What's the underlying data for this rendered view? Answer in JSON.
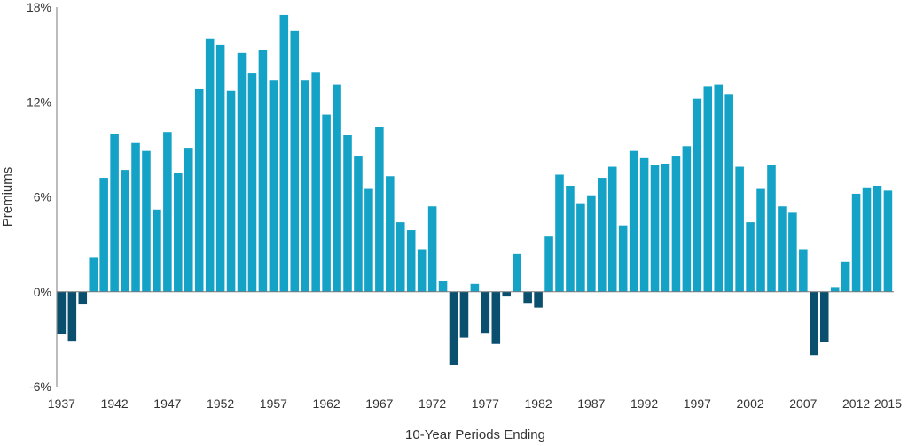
{
  "chart_data": {
    "type": "bar",
    "title": "",
    "xlabel": "10-Year Periods Ending",
    "ylabel": "Premiums",
    "ylim": [
      -6,
      18
    ],
    "y_ticks": [
      "-6%",
      "0%",
      "6%",
      "12%",
      "18%"
    ],
    "y_tick_values": [
      -6,
      0,
      6,
      12,
      18
    ],
    "x_tick_labels": [
      "1937",
      "1942",
      "1947",
      "1952",
      "1957",
      "1962",
      "1967",
      "1972",
      "1977",
      "1982",
      "1987",
      "1992",
      "1997",
      "2002",
      "2007",
      "2012",
      "2015"
    ],
    "grid": false,
    "colors": {
      "positive": "#14a3c7",
      "negative": "#0a4f6e",
      "axis": "#7a7a7a"
    },
    "categories": [
      "1937",
      "1938",
      "1939",
      "1940",
      "1941",
      "1942",
      "1943",
      "1944",
      "1945",
      "1946",
      "1947",
      "1948",
      "1949",
      "1950",
      "1951",
      "1952",
      "1953",
      "1954",
      "1955",
      "1956",
      "1957",
      "1958",
      "1959",
      "1960",
      "1961",
      "1962",
      "1963",
      "1964",
      "1965",
      "1966",
      "1967",
      "1968",
      "1969",
      "1970",
      "1971",
      "1972",
      "1973",
      "1974",
      "1975",
      "1976",
      "1977",
      "1978",
      "1979",
      "1980",
      "1981",
      "1982",
      "1983",
      "1984",
      "1985",
      "1986",
      "1987",
      "1988",
      "1989",
      "1990",
      "1991",
      "1992",
      "1993",
      "1994",
      "1995",
      "1996",
      "1997",
      "1998",
      "1999",
      "2000",
      "2001",
      "2002",
      "2003",
      "2004",
      "2005",
      "2006",
      "2007",
      "2008",
      "2009",
      "2010",
      "2011",
      "2012",
      "2013",
      "2014",
      "2015"
    ],
    "values": [
      -2.7,
      -3.1,
      -0.8,
      2.2,
      7.2,
      10.0,
      7.7,
      9.4,
      8.9,
      5.2,
      10.1,
      7.5,
      9.1,
      12.8,
      16.0,
      15.6,
      12.7,
      15.1,
      13.8,
      15.3,
      13.4,
      17.5,
      16.5,
      13.4,
      13.9,
      11.2,
      13.1,
      9.9,
      8.6,
      6.5,
      10.4,
      7.3,
      4.4,
      3.9,
      2.7,
      5.4,
      0.7,
      -4.6,
      -2.9,
      0.5,
      -2.6,
      -3.3,
      -0.3,
      2.4,
      -0.7,
      -1.0,
      3.5,
      7.4,
      6.7,
      5.6,
      6.1,
      7.2,
      7.9,
      4.2,
      8.9,
      8.5,
      8.0,
      8.1,
      8.6,
      9.2,
      12.2,
      13.0,
      13.1,
      12.5,
      7.9,
      4.4,
      6.5,
      8.0,
      5.4,
      5.0,
      2.7,
      -4.0,
      -3.2,
      0.3,
      1.9,
      6.2,
      6.6,
      6.7,
      6.4
    ]
  }
}
